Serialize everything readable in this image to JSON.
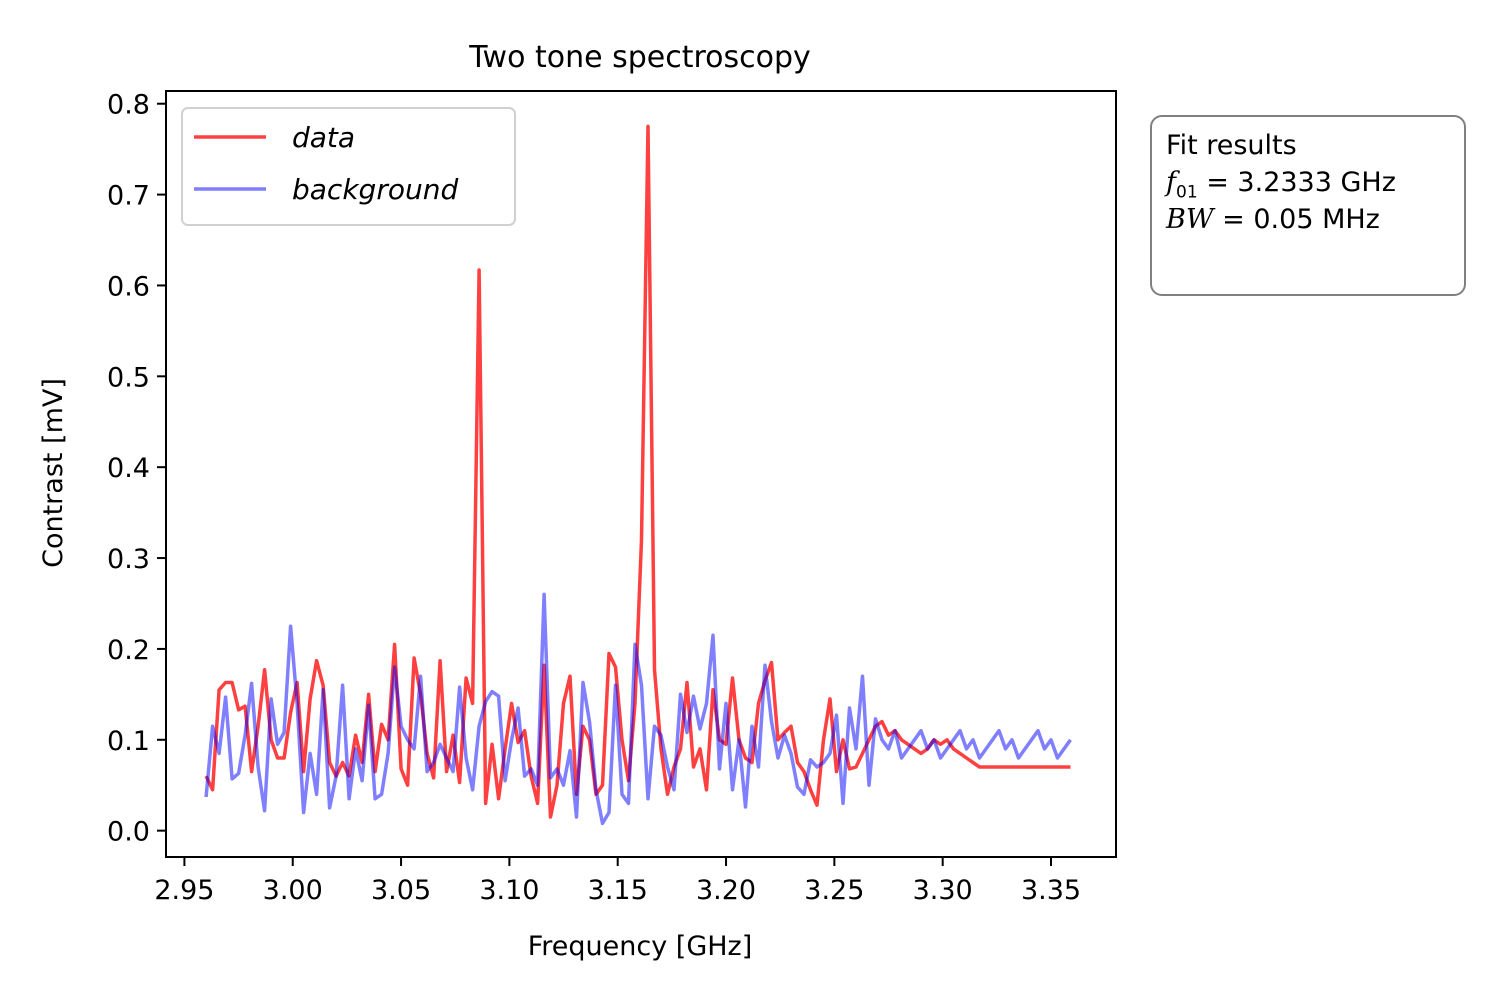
{
  "fit_box": {
    "heading": "Fit results",
    "f01_symbol": "f",
    "f01_subscript": "01",
    "f01_value": " = 3.2333 GHz",
    "bw_symbol": "BW",
    "bw_value": " = 0.05 MHz"
  },
  "chart_data": {
    "type": "line",
    "title": "Two tone spectroscopy",
    "xlabel": "Frequency [GHz]",
    "ylabel": "Contrast [mV]",
    "xlim": [
      2.9415,
      3.38
    ],
    "ylim": [
      -0.029,
      0.814
    ],
    "xticks": [
      2.95,
      3.0,
      3.05,
      3.1,
      3.15,
      3.2,
      3.25,
      3.3,
      3.35
    ],
    "xtick_labels": [
      "2.95",
      "3.00",
      "3.05",
      "3.10",
      "3.15",
      "3.20",
      "3.25",
      "3.30",
      "3.35"
    ],
    "yticks": [
      0.0,
      0.1,
      0.2,
      0.3,
      0.4,
      0.5,
      0.6,
      0.7,
      0.8
    ],
    "ytick_labels": [
      "0.0",
      "0.1",
      "0.2",
      "0.3",
      "0.4",
      "0.5",
      "0.6",
      "0.7",
      "0.8"
    ],
    "grid": false,
    "legend_position": "top-left",
    "series": [
      {
        "name": "data",
        "color": "#ff0000",
        "alpha": 0.75,
        "x": [
          2.96,
          2.963,
          2.966,
          2.969,
          2.972,
          2.975,
          2.978,
          2.981,
          2.984,
          2.987,
          2.99,
          2.993,
          2.996,
          2.999,
          3.002,
          3.005,
          3.008,
          3.011,
          3.014,
          3.017,
          3.02,
          3.023,
          3.026,
          3.029,
          3.032,
          3.035,
          3.038,
          3.041,
          3.044,
          3.047,
          3.05,
          3.053,
          3.056,
          3.059,
          3.062,
          3.065,
          3.068,
          3.071,
          3.074,
          3.077,
          3.08,
          3.083,
          3.086,
          3.089,
          3.092,
          3.095,
          3.098,
          3.101,
          3.104,
          3.107,
          3.11,
          3.113,
          3.116,
          3.119,
          3.122,
          3.125,
          3.128,
          3.131,
          3.134,
          3.137,
          3.14,
          3.143,
          3.146,
          3.149,
          3.152,
          3.155,
          3.158,
          3.161,
          3.164,
          3.167,
          3.17,
          3.173,
          3.176,
          3.179,
          3.182,
          3.185,
          3.188,
          3.191,
          3.194,
          3.197,
          3.2,
          3.203,
          3.206,
          3.209,
          3.212,
          3.215,
          3.218,
          3.221,
          3.224,
          3.227,
          3.23,
          3.233,
          3.236,
          3.239,
          3.242,
          3.245,
          3.248,
          3.251,
          3.254,
          3.257,
          3.26,
          3.263,
          3.266,
          3.269,
          3.272,
          3.275,
          3.278,
          3.281,
          3.284,
          3.287,
          3.29,
          3.293,
          3.296,
          3.299,
          3.302,
          3.305,
          3.308,
          3.311,
          3.314,
          3.317,
          3.32,
          3.323,
          3.326,
          3.329,
          3.332,
          3.335,
          3.338,
          3.341,
          3.344,
          3.347,
          3.35,
          3.353,
          3.356,
          3.359
        ],
        "y": [
          0.06,
          0.045,
          0.155,
          0.163,
          0.163,
          0.133,
          0.137,
          0.065,
          0.115,
          0.177,
          0.1,
          0.08,
          0.08,
          0.13,
          0.163,
          0.065,
          0.145,
          0.187,
          0.16,
          0.075,
          0.06,
          0.075,
          0.06,
          0.105,
          0.075,
          0.15,
          0.065,
          0.117,
          0.1,
          0.205,
          0.068,
          0.05,
          0.19,
          0.15,
          0.085,
          0.058,
          0.187,
          0.065,
          0.105,
          0.053,
          0.168,
          0.14,
          0.617,
          0.03,
          0.095,
          0.035,
          0.09,
          0.14,
          0.097,
          0.11,
          0.06,
          0.03,
          0.182,
          0.015,
          0.05,
          0.14,
          0.17,
          0.04,
          0.115,
          0.1,
          0.04,
          0.05,
          0.195,
          0.18,
          0.1,
          0.055,
          0.14,
          0.32,
          0.775,
          0.177,
          0.09,
          0.04,
          0.07,
          0.09,
          0.163,
          0.07,
          0.09,
          0.045,
          0.155,
          0.1,
          0.095,
          0.168,
          0.1,
          0.08,
          0.075,
          0.14,
          0.165,
          0.185,
          0.1,
          0.108,
          0.115,
          0.075,
          0.065,
          0.045,
          0.028,
          0.1,
          0.145,
          0.065,
          0.1,
          0.068,
          0.07,
          0.085,
          0.1,
          0.115,
          0.12,
          0.105,
          0.11,
          0.1,
          0.095,
          0.09,
          0.085,
          0.09,
          0.1,
          0.095,
          0.1,
          0.09,
          0.085,
          0.08,
          0.075,
          0.07,
          0.07,
          0.07,
          0.07,
          0.07,
          0.07,
          0.07,
          0.07,
          0.07,
          0.07,
          0.07,
          0.07,
          0.07,
          0.07,
          0.07
        ]
      },
      {
        "name": "background",
        "color": "#0000ff",
        "alpha": 0.5,
        "x": [
          2.96,
          2.963,
          2.966,
          2.969,
          2.972,
          2.975,
          2.978,
          2.981,
          2.984,
          2.987,
          2.99,
          2.993,
          2.996,
          2.999,
          3.002,
          3.005,
          3.008,
          3.011,
          3.014,
          3.017,
          3.02,
          3.023,
          3.026,
          3.029,
          3.032,
          3.035,
          3.038,
          3.041,
          3.044,
          3.047,
          3.05,
          3.053,
          3.056,
          3.059,
          3.062,
          3.065,
          3.068,
          3.071,
          3.074,
          3.077,
          3.08,
          3.083,
          3.086,
          3.089,
          3.092,
          3.095,
          3.098,
          3.101,
          3.104,
          3.107,
          3.11,
          3.113,
          3.116,
          3.119,
          3.122,
          3.125,
          3.128,
          3.131,
          3.134,
          3.137,
          3.14,
          3.143,
          3.146,
          3.149,
          3.152,
          3.155,
          3.158,
          3.161,
          3.164,
          3.167,
          3.17,
          3.173,
          3.176,
          3.179,
          3.182,
          3.185,
          3.188,
          3.191,
          3.194,
          3.197,
          3.2,
          3.203,
          3.206,
          3.209,
          3.212,
          3.215,
          3.218,
          3.221,
          3.224,
          3.227,
          3.23,
          3.233,
          3.236,
          3.239,
          3.242,
          3.245,
          3.248,
          3.251,
          3.254,
          3.257,
          3.26,
          3.263,
          3.266,
          3.269,
          3.272,
          3.275,
          3.278,
          3.281,
          3.284,
          3.287,
          3.29,
          3.293,
          3.296,
          3.299,
          3.302,
          3.305,
          3.308,
          3.311,
          3.314,
          3.317,
          3.32,
          3.323,
          3.326,
          3.329,
          3.332,
          3.335,
          3.338,
          3.341,
          3.344,
          3.347,
          3.35,
          3.353,
          3.356,
          3.359
        ],
        "y": [
          0.037,
          0.115,
          0.085,
          0.147,
          0.057,
          0.063,
          0.105,
          0.162,
          0.07,
          0.022,
          0.145,
          0.095,
          0.108,
          0.225,
          0.14,
          0.02,
          0.085,
          0.04,
          0.155,
          0.025,
          0.06,
          0.16,
          0.035,
          0.09,
          0.055,
          0.138,
          0.035,
          0.04,
          0.085,
          0.18,
          0.115,
          0.1,
          0.09,
          0.17,
          0.065,
          0.075,
          0.095,
          0.08,
          0.065,
          0.158,
          0.08,
          0.045,
          0.115,
          0.142,
          0.153,
          0.148,
          0.055,
          0.1,
          0.135,
          0.06,
          0.068,
          0.05,
          0.26,
          0.058,
          0.068,
          0.05,
          0.088,
          0.015,
          0.163,
          0.12,
          0.045,
          0.008,
          0.02,
          0.16,
          0.04,
          0.03,
          0.205,
          0.16,
          0.035,
          0.115,
          0.105,
          0.07,
          0.045,
          0.15,
          0.108,
          0.148,
          0.112,
          0.14,
          0.215,
          0.068,
          0.14,
          0.045,
          0.1,
          0.026,
          0.115,
          0.07,
          0.182,
          0.12,
          0.08,
          0.105,
          0.085,
          0.048,
          0.04,
          0.078,
          0.07,
          0.075,
          0.085,
          0.127,
          0.03,
          0.135,
          0.09,
          0.17,
          0.05,
          0.123,
          0.1,
          0.09,
          0.11,
          0.08,
          0.09,
          0.1,
          0.11,
          0.09,
          0.1,
          0.08,
          0.09,
          0.1,
          0.11,
          0.09,
          0.1,
          0.08,
          0.09,
          0.1,
          0.11,
          0.09,
          0.1,
          0.08,
          0.09,
          0.1,
          0.11,
          0.09,
          0.1,
          0.08,
          0.09,
          0.1
        ]
      }
    ]
  }
}
